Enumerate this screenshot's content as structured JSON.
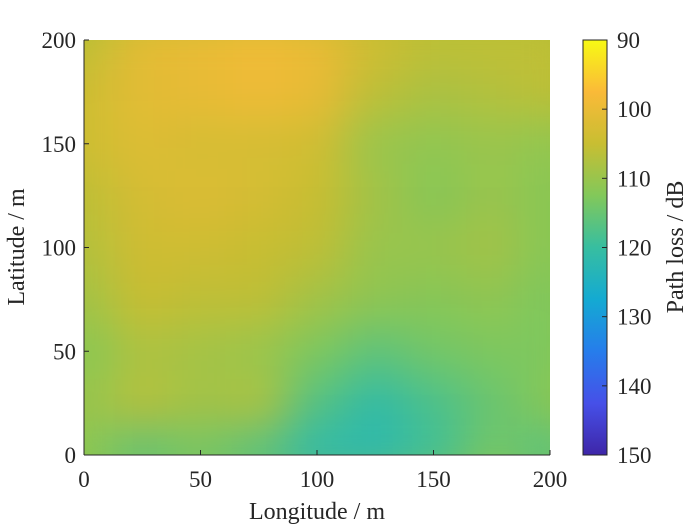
{
  "chart_data": {
    "type": "heatmap",
    "xlabel": "Longitude / m",
    "ylabel": "Latitude / m",
    "xlim": [
      0,
      200
    ],
    "ylim": [
      0,
      200
    ],
    "xticks": [
      "0",
      "50",
      "100",
      "150",
      "200"
    ],
    "yticks": [
      "0",
      "50",
      "100",
      "150",
      "200"
    ],
    "grid": false,
    "colorbar": {
      "label": "Path loss / dB",
      "range": [
        90,
        150
      ],
      "reversed": true,
      "ticks": [
        "90",
        "100",
        "110",
        "120",
        "130",
        "140",
        "150"
      ],
      "colormap": "parula"
    },
    "x": [
      0,
      25,
      50,
      75,
      100,
      125,
      150,
      175,
      200
    ],
    "y": [
      200,
      175,
      150,
      125,
      100,
      75,
      50,
      25,
      0
    ],
    "values": [
      [
        106,
        101,
        100,
        99,
        100,
        104,
        106,
        106,
        106
      ],
      [
        104,
        101,
        100,
        99,
        100,
        106,
        108,
        107,
        106
      ],
      [
        104,
        102,
        103,
        103,
        104,
        110,
        111,
        110,
        111
      ],
      [
        106,
        103,
        102,
        103,
        105,
        109,
        112,
        110,
        112
      ],
      [
        107,
        104,
        104,
        105,
        106,
        110,
        110,
        109,
        112
      ],
      [
        109,
        105,
        106,
        106,
        109,
        111,
        112,
        111,
        113
      ],
      [
        112,
        108,
        109,
        110,
        113,
        116,
        114,
        113,
        113
      ],
      [
        110,
        107,
        109,
        108,
        117,
        121,
        118,
        115,
        112
      ],
      [
        112,
        116,
        114,
        117,
        122,
        122,
        119,
        114,
        117
      ]
    ]
  }
}
